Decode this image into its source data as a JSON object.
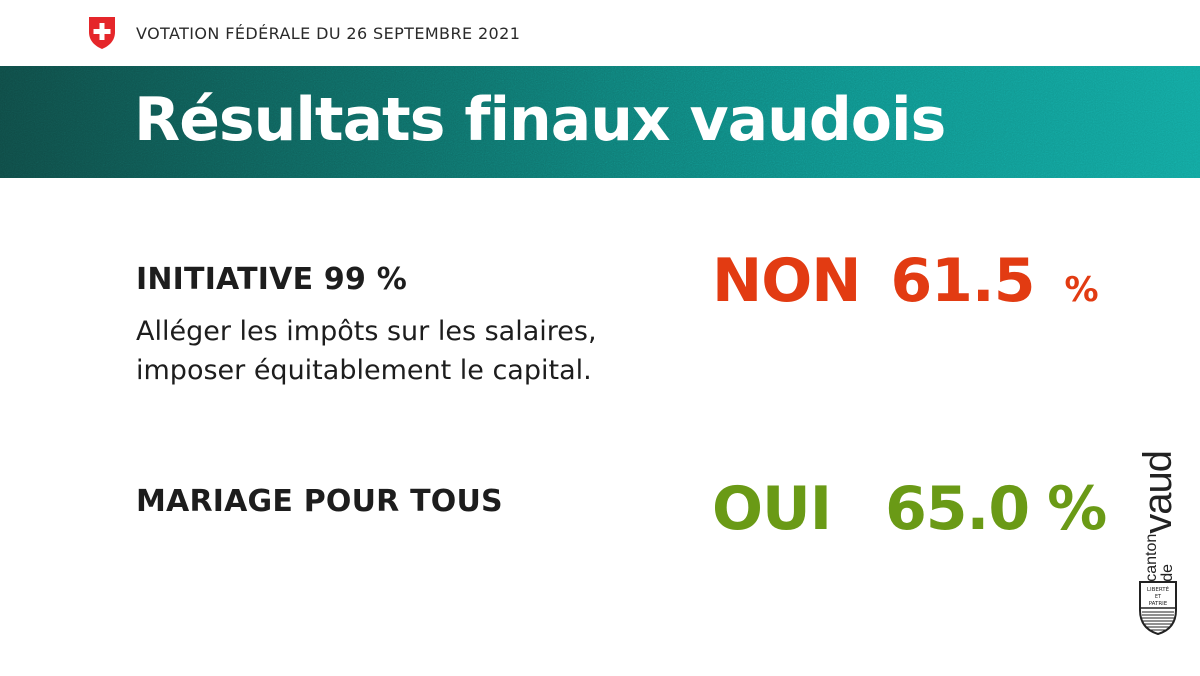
{
  "header": {
    "flag_icon": "swiss-flag-shield-icon",
    "vote_date": "VOTATION FÉDÉRALE DU 26 SEPTEMBRE 2021"
  },
  "banner": {
    "title": "Résultats finaux vaudois"
  },
  "items": [
    {
      "title": "INITIATIVE 99 %",
      "description_lines": [
        "Alléger les impôts sur les salaires,",
        "imposer équitablement le capital."
      ],
      "result_word": "NON",
      "result_value": "61.5",
      "result_unit": "%",
      "color": "#e23b12"
    },
    {
      "title": "MARIAGE POUR TOUS",
      "result_word": "OUI",
      "result_value": "65.0",
      "result_unit": "%",
      "color": "#6a9a16"
    }
  ],
  "logo": {
    "line_small": "canton de",
    "line_big": "vaud",
    "motto_top": "LIBERTÉ",
    "motto_mid": "ET",
    "motto_bottom": "PATRIE"
  },
  "colors": {
    "banner_dark": "#0f4a45",
    "banner_light": "#12a39c",
    "no": "#e23b12",
    "yes": "#6a9a16",
    "swiss_red": "#e5262a"
  }
}
